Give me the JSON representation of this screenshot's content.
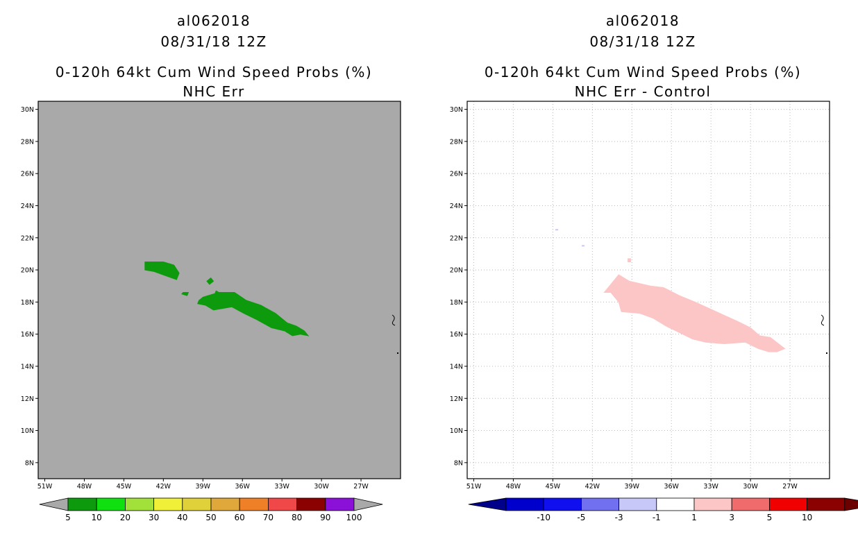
{
  "left_panel": {
    "storm_id": "al062018",
    "datetime": "08/31/18 12Z",
    "product": "0-120h 64kt Cum Wind Speed Probs (%)",
    "subtitle": "NHC Err",
    "background_color": "#a9a9a9",
    "shape_color": "#0d9b0d"
  },
  "right_panel": {
    "storm_id": "al062018",
    "datetime": "08/31/18 12Z",
    "product": "0-120h 64kt Cum Wind Speed Probs (%)",
    "subtitle": "NHC Err - Control",
    "background_color": "#ffffff",
    "shape_color": "#fcc6c6"
  },
  "chart_data": [
    {
      "type": "heatmap",
      "title": "0-120h 64kt Cum Wind Speed Probs (%) - NHC Err",
      "xlim": [
        -51.5,
        -24
      ],
      "ylim": [
        7,
        30.5
      ],
      "x_ticks": [
        -51,
        -48,
        -45,
        -42,
        -39,
        -36,
        -33,
        -30,
        -27
      ],
      "x_tick_labels": [
        "51W",
        "48W",
        "45W",
        "42W",
        "39W",
        "36W",
        "33W",
        "30W",
        "27W"
      ],
      "y_ticks": [
        8,
        10,
        12,
        14,
        16,
        18,
        20,
        22,
        24,
        26,
        28,
        30
      ],
      "y_tick_labels": [
        "8N",
        "10N",
        "12N",
        "14N",
        "16N",
        "18N",
        "20N",
        "22N",
        "24N",
        "26N",
        "28N",
        "30N"
      ],
      "grid": false,
      "region_value_range": "5-10",
      "region_polygons": [
        [
          [
            -43.4,
            20.5
          ],
          [
            -42.0,
            20.5
          ],
          [
            -41.2,
            20.3
          ],
          [
            -40.8,
            19.8
          ],
          [
            -41.0,
            19.4
          ],
          [
            -41.7,
            19.6
          ],
          [
            -42.7,
            19.9
          ],
          [
            -43.4,
            20.0
          ]
        ],
        [
          [
            -39.0,
            18.3
          ],
          [
            -37.8,
            18.6
          ],
          [
            -36.6,
            18.6
          ],
          [
            -35.7,
            18.1
          ],
          [
            -34.6,
            17.8
          ],
          [
            -33.5,
            17.3
          ],
          [
            -32.6,
            16.7
          ],
          [
            -31.9,
            16.5
          ],
          [
            -31.3,
            16.2
          ],
          [
            -31.0,
            15.9
          ],
          [
            -31.6,
            16.0
          ],
          [
            -32.2,
            15.9
          ],
          [
            -32.8,
            16.2
          ],
          [
            -33.8,
            16.4
          ],
          [
            -34.9,
            16.9
          ],
          [
            -35.9,
            17.3
          ],
          [
            -36.8,
            17.7
          ],
          [
            -37.5,
            17.6
          ],
          [
            -38.2,
            17.5
          ],
          [
            -38.8,
            17.8
          ],
          [
            -39.4,
            17.9
          ],
          [
            -39.3,
            18.1
          ]
        ],
        [
          [
            -40.5,
            18.6
          ],
          [
            -40.1,
            18.6
          ],
          [
            -40.2,
            18.4
          ],
          [
            -40.6,
            18.5
          ]
        ],
        [
          [
            -38.7,
            19.3
          ],
          [
            -38.4,
            19.5
          ],
          [
            -38.2,
            19.3
          ],
          [
            -38.5,
            19.1
          ]
        ],
        [
          [
            -38.0,
            18.7
          ],
          [
            -37.8,
            18.6
          ],
          [
            -37.9,
            18.4
          ],
          [
            -38.1,
            18.5
          ]
        ]
      ],
      "colorbar": {
        "levels": [
          "5",
          "10",
          "20",
          "30",
          "40",
          "50",
          "60",
          "70",
          "80",
          "90",
          "100"
        ],
        "colors": [
          "#0d9b0d",
          "#10e010",
          "#a2e03a",
          "#f0f038",
          "#e0d03a",
          "#e0a83a",
          "#f08028",
          "#f04848",
          "#8b0000",
          "#8b10d8"
        ],
        "extend_color": "#a9a9a9"
      }
    },
    {
      "type": "heatmap",
      "title": "0-120h 64kt Cum Wind Speed Probs (%) - NHC Err - Control",
      "xlim": [
        -51.5,
        -24
      ],
      "ylim": [
        7,
        30.5
      ],
      "x_ticks": [
        -51,
        -48,
        -45,
        -42,
        -39,
        -36,
        -33,
        -30,
        -27
      ],
      "x_tick_labels": [
        "51W",
        "48W",
        "45W",
        "42W",
        "39W",
        "36W",
        "33W",
        "30W",
        "27W"
      ],
      "y_ticks": [
        8,
        10,
        12,
        14,
        16,
        18,
        20,
        22,
        24,
        26,
        28,
        30
      ],
      "y_tick_labels": [
        "8N",
        "10N",
        "12N",
        "14N",
        "16N",
        "18N",
        "20N",
        "22N",
        "24N",
        "26N",
        "28N",
        "30N"
      ],
      "grid": true,
      "region_value_range": "1-3",
      "region_polygons": [
        [
          [
            -40.4,
            19.3
          ],
          [
            -40.0,
            19.7
          ],
          [
            -39.2,
            19.3
          ],
          [
            -37.6,
            19.0
          ],
          [
            -36.6,
            18.9
          ],
          [
            -35.4,
            18.4
          ],
          [
            -34.2,
            18.0
          ],
          [
            -32.6,
            17.4
          ],
          [
            -31.0,
            16.8
          ],
          [
            -30.0,
            16.4
          ],
          [
            -29.3,
            15.9
          ],
          [
            -28.5,
            15.8
          ],
          [
            -27.4,
            15.1
          ],
          [
            -28.0,
            14.9
          ],
          [
            -28.6,
            14.9
          ],
          [
            -29.4,
            15.1
          ],
          [
            -30.4,
            15.5
          ],
          [
            -32.0,
            15.4
          ],
          [
            -33.4,
            15.5
          ],
          [
            -34.4,
            15.7
          ],
          [
            -35.4,
            16.1
          ],
          [
            -36.4,
            16.5
          ],
          [
            -37.4,
            17.0
          ],
          [
            -38.4,
            17.3
          ],
          [
            -39.8,
            17.4
          ],
          [
            -40.0,
            18.0
          ],
          [
            -40.6,
            18.6
          ],
          [
            -41.1,
            18.6
          ]
        ],
        [
          [
            -39.3,
            20.7
          ],
          [
            -39.1,
            20.7
          ],
          [
            -39.1,
            20.5
          ],
          [
            -39.3,
            20.5
          ]
        ]
      ],
      "small_marks": [
        {
          "lon": -44.7,
          "lat": 22.5,
          "value_range": "-3--1"
        },
        {
          "lon": -42.7,
          "lat": 21.5,
          "value_range": "-3--1"
        }
      ],
      "colorbar": {
        "levels": [
          "-10",
          "-5",
          "-3",
          "-1",
          "1",
          "3",
          "5",
          "10"
        ],
        "colors": [
          "#0000cc",
          "#0f0ff0",
          "#7070f0",
          "#c8c8f8",
          "#ffffff",
          "#fcc6c6",
          "#f06c6c",
          "#f00000",
          "#8b0000"
        ],
        "extend_colors": [
          "#00008b",
          "#6b0000"
        ]
      }
    }
  ]
}
